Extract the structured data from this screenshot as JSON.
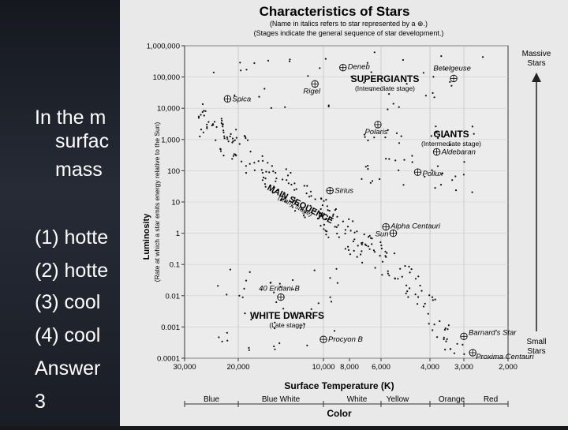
{
  "slide": {
    "question_lines": [
      "In the m",
      "surfac",
      "mass"
    ],
    "options": [
      "(1) hotte",
      "(2) hotte",
      "(3) cool",
      "(4) cool"
    ],
    "answer_label": "Answer",
    "answer_value": "3"
  },
  "figure": {
    "title": "Characteristics of Stars",
    "subtitle_1": "(Name in italics refers to star represented by a ⊕.)",
    "subtitle_2": "(Stages indicate the general sequence of star development.)",
    "y_axis_label_1": "Luminosity",
    "y_axis_label_2": "(Rate at which a star emits energy relative to the Sun)",
    "x_axis_label": "Surface Temperature (K)",
    "color_axis_label": "Color",
    "color_labels": [
      "Blue",
      "Blue White",
      "White",
      "Yellow",
      "Orange",
      "Red"
    ],
    "y_ticks": [
      "1,000,000",
      "100,000",
      "10,000",
      "1,000",
      "100",
      "10",
      "1",
      "0.1",
      "0.01",
      "0.001",
      "0.0001"
    ],
    "x_ticks": [
      "30,000",
      "20,000",
      "10,000",
      "8,000",
      "6,000",
      "4,000",
      "3,000",
      "2,000"
    ],
    "regions": {
      "supergiants": "SUPERGIANTS",
      "supergiants_stage": "(Intermediate stage)",
      "giants": "GIANTS",
      "giants_stage": "(Intermediate stage)",
      "main_sequence": "MAIN SEQUENCE",
      "main_sequence_stage": "(Early stage)",
      "white_dwarfs": "WHITE DWARFS",
      "white_dwarfs_stage": "(Late stage)"
    },
    "arrow_top_label_1": "Massive",
    "arrow_top_label_2": "Stars",
    "arrow_bottom_label_1": "Small",
    "arrow_bottom_label_2": "Stars",
    "stars": [
      {
        "name": "Deneb",
        "temp": 8500,
        "lum": 200000
      },
      {
        "name": "Betelgeuse",
        "temp": 3300,
        "lum": 90000
      },
      {
        "name": "Rigel",
        "temp": 11000,
        "lum": 60000
      },
      {
        "name": "Spica",
        "temp": 22000,
        "lum": 20000
      },
      {
        "name": "Polaris",
        "temp": 6200,
        "lum": 3000
      },
      {
        "name": "Aldebaran",
        "temp": 3800,
        "lum": 400
      },
      {
        "name": "Pollux",
        "temp": 4500,
        "lum": 90
      },
      {
        "name": "Sirius",
        "temp": 9500,
        "lum": 23
      },
      {
        "name": "Alpha Centauri",
        "temp": 5800,
        "lum": 1.6
      },
      {
        "name": "Sun",
        "temp": 5500,
        "lum": 1
      },
      {
        "name": "40 Eridani B",
        "temp": 15000,
        "lum": 0.009
      },
      {
        "name": "Barnard's Star",
        "temp": 3000,
        "lum": 0.0005
      },
      {
        "name": "Procyon B",
        "temp": 10000,
        "lum": 0.0004
      },
      {
        "name": "Proxima Centauri",
        "temp": 2800,
        "lum": 0.00015
      }
    ]
  }
}
